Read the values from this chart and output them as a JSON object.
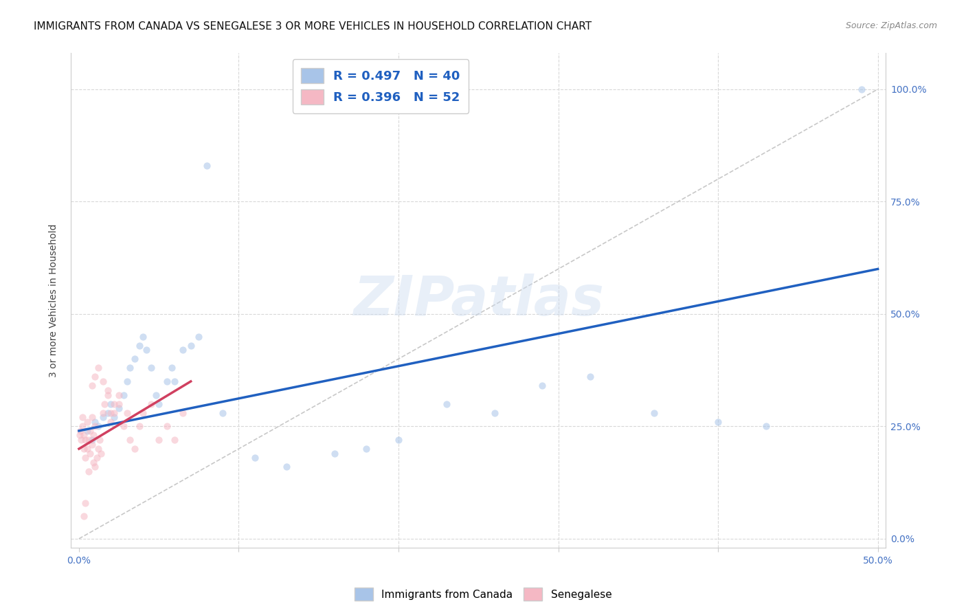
{
  "title": "IMMIGRANTS FROM CANADA VS SENEGALESE 3 OR MORE VEHICLES IN HOUSEHOLD CORRELATION CHART",
  "source": "Source: ZipAtlas.com",
  "tick_color": "#4472c4",
  "ylabel": "3 or more Vehicles in Household",
  "xlim": [
    -0.005,
    0.505
  ],
  "ylim": [
    -0.02,
    1.08
  ],
  "xticks": [
    0.0,
    0.1,
    0.2,
    0.3,
    0.4,
    0.5
  ],
  "yticks": [
    0.0,
    0.25,
    0.5,
    0.75,
    1.0
  ],
  "xtick_labels_visible": [
    "0.0%",
    "",
    "",
    "",
    "",
    "50.0%"
  ],
  "ytick_labels_visible": [
    "0.0%",
    "25.0%",
    "50.0%",
    "75.0%",
    "100.0%"
  ],
  "blue_color": "#a8c4e8",
  "pink_color": "#f5b8c4",
  "blue_line_color": "#2060c0",
  "pink_line_color": "#d04060",
  "diag_line_color": "#c8c8c8",
  "watermark": "ZIPatlas",
  "legend_R_blue": "R = 0.497",
  "legend_N_blue": "N = 40",
  "legend_R_pink": "R = 0.396",
  "legend_N_pink": "N = 52",
  "legend_label_blue": "Immigrants from Canada",
  "legend_label_pink": "Senegalese",
  "blue_scatter_x": [
    0.005,
    0.008,
    0.01,
    0.012,
    0.015,
    0.018,
    0.02,
    0.022,
    0.025,
    0.028,
    0.03,
    0.032,
    0.035,
    0.038,
    0.04,
    0.042,
    0.045,
    0.048,
    0.05,
    0.055,
    0.058,
    0.06,
    0.065,
    0.07,
    0.075,
    0.08,
    0.09,
    0.11,
    0.13,
    0.16,
    0.18,
    0.2,
    0.23,
    0.26,
    0.29,
    0.32,
    0.36,
    0.4,
    0.43,
    0.49
  ],
  "blue_scatter_y": [
    0.24,
    0.22,
    0.26,
    0.25,
    0.27,
    0.28,
    0.3,
    0.27,
    0.29,
    0.32,
    0.35,
    0.38,
    0.4,
    0.43,
    0.45,
    0.42,
    0.38,
    0.32,
    0.3,
    0.35,
    0.38,
    0.35,
    0.42,
    0.43,
    0.45,
    0.83,
    0.28,
    0.18,
    0.16,
    0.19,
    0.2,
    0.22,
    0.3,
    0.28,
    0.34,
    0.36,
    0.28,
    0.26,
    0.25,
    1.0
  ],
  "pink_scatter_x": [
    0.0005,
    0.001,
    0.0015,
    0.002,
    0.002,
    0.003,
    0.003,
    0.004,
    0.004,
    0.005,
    0.005,
    0.006,
    0.006,
    0.007,
    0.007,
    0.008,
    0.008,
    0.009,
    0.009,
    0.01,
    0.01,
    0.011,
    0.012,
    0.013,
    0.014,
    0.015,
    0.016,
    0.018,
    0.02,
    0.022,
    0.025,
    0.028,
    0.03,
    0.032,
    0.035,
    0.038,
    0.04,
    0.045,
    0.05,
    0.055,
    0.06,
    0.065,
    0.008,
    0.01,
    0.012,
    0.015,
    0.018,
    0.02,
    0.022,
    0.025,
    0.003,
    0.004
  ],
  "pink_scatter_y": [
    0.23,
    0.24,
    0.22,
    0.25,
    0.27,
    0.23,
    0.2,
    0.22,
    0.18,
    0.26,
    0.2,
    0.22,
    0.15,
    0.19,
    0.24,
    0.21,
    0.27,
    0.17,
    0.23,
    0.16,
    0.25,
    0.18,
    0.2,
    0.22,
    0.19,
    0.28,
    0.3,
    0.32,
    0.26,
    0.28,
    0.3,
    0.25,
    0.28,
    0.22,
    0.2,
    0.25,
    0.28,
    0.3,
    0.22,
    0.25,
    0.22,
    0.28,
    0.34,
    0.36,
    0.38,
    0.35,
    0.33,
    0.28,
    0.3,
    0.32,
    0.05,
    0.08
  ],
  "blue_line_x": [
    0.0,
    0.5
  ],
  "blue_line_y": [
    0.24,
    0.6
  ],
  "pink_line_x": [
    0.0,
    0.07
  ],
  "pink_line_y": [
    0.2,
    0.35
  ],
  "diag_line_x": [
    0.0,
    0.5
  ],
  "diag_line_y": [
    0.0,
    1.0
  ],
  "grid_color": "#d8d8d8",
  "background_color": "#ffffff",
  "title_fontsize": 11,
  "axis_label_fontsize": 10,
  "tick_fontsize": 10,
  "scatter_size": 55,
  "scatter_alpha": 0.55,
  "line_width": 2.5
}
